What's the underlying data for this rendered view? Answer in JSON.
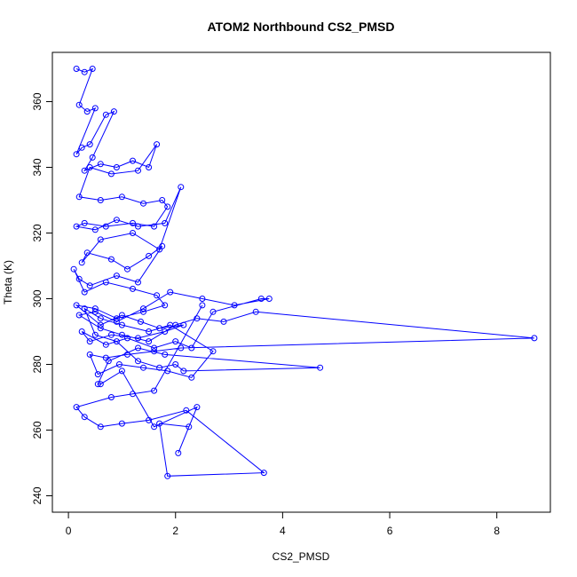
{
  "chart_data": {
    "type": "scatter",
    "title": "ATOM2 Northbound CS2_PMSD",
    "xlabel": "CS2_PMSD",
    "ylabel": "Theta (K)",
    "xlim": [
      -0.3,
      9.0
    ],
    "ylim": [
      235,
      375
    ],
    "xticks": [
      0,
      2,
      4,
      6,
      8
    ],
    "yticks": [
      240,
      260,
      280,
      300,
      320,
      340,
      360
    ],
    "grid": false,
    "legend": "none",
    "series": [
      {
        "marker": "open-circle",
        "connected": true,
        "x": [
          0.15,
          0.3,
          0.45,
          0.2,
          0.35,
          0.5,
          0.15,
          0.25,
          0.4,
          0.7,
          0.85,
          0.45,
          0.3,
          0.6,
          0.9,
          1.2,
          1.5,
          1.65,
          1.3,
          0.8,
          0.4,
          0.2,
          0.6,
          1.0,
          1.4,
          1.75,
          1.85,
          1.6,
          1.2,
          0.7,
          0.3,
          0.15,
          0.5,
          0.9,
          1.3,
          1.8,
          2.1,
          1.7,
          1.2,
          0.6,
          0.25,
          0.35,
          0.8,
          1.1,
          1.5,
          1.75,
          1.3,
          0.9,
          0.4,
          0.2,
          0.1,
          0.3,
          0.7,
          1.2,
          1.65,
          1.8,
          1.4,
          0.9,
          0.5,
          0.15,
          0.6,
          1.0,
          1.35,
          1.7,
          2.15,
          1.8,
          1.3,
          0.8,
          0.4,
          0.25,
          0.7,
          1.1,
          1.6,
          2.0,
          2.3,
          2.7,
          3.6,
          3.75,
          3.1,
          2.5,
          1.9,
          1.4,
          0.9,
          0.5,
          0.2,
          0.6,
          1.0,
          1.5,
          2.0,
          2.4,
          2.9,
          3.5,
          8.7,
          2.1,
          1.6,
          1.1,
          0.7,
          0.4,
          0.55,
          0.95,
          1.4,
          1.85,
          2.3,
          2.7,
          1.9,
          1.5,
          1.0,
          0.6,
          0.3,
          0.5,
          0.9,
          1.3,
          1.7,
          2.0,
          2.15,
          4.7,
          1.8,
          1.3,
          0.75,
          0.55,
          0.6,
          1.0,
          1.6,
          2.4,
          2.05,
          2.25,
          1.7,
          1.85,
          3.65,
          2.2,
          1.5,
          1.0,
          0.6,
          0.3,
          0.15,
          0.8,
          1.2,
          1.6,
          2.5
        ],
        "y": [
          370,
          369,
          370,
          359,
          357,
          358,
          344,
          346,
          347,
          356,
          357,
          343,
          339,
          341,
          340,
          342,
          340,
          347,
          339,
          338,
          340,
          331,
          330,
          331,
          329,
          330,
          328,
          322,
          323,
          322,
          323,
          322,
          321,
          324,
          322,
          323,
          334,
          315,
          320,
          318,
          311,
          314,
          312,
          309,
          313,
          316,
          305,
          307,
          304,
          306,
          309,
          302,
          305,
          303,
          301,
          298,
          296,
          294,
          297,
          298,
          292,
          295,
          293,
          291,
          292,
          290,
          288,
          289,
          287,
          290,
          286,
          288,
          285,
          287,
          285,
          296,
          300,
          300,
          298,
          300,
          302,
          297,
          293,
          296,
          295,
          291,
          289,
          287,
          292,
          294,
          293,
          296,
          288,
          285,
          284,
          283,
          282,
          283,
          277,
          280,
          279,
          278,
          276,
          284,
          292,
          290,
          292,
          294,
          297,
          289,
          287,
          281,
          279,
          280,
          278,
          279,
          283,
          285,
          281,
          274,
          274,
          278,
          261,
          267,
          253,
          261,
          262,
          246,
          247,
          266,
          263,
          262,
          261,
          264,
          267,
          270,
          271,
          272,
          298
        ]
      }
    ]
  }
}
